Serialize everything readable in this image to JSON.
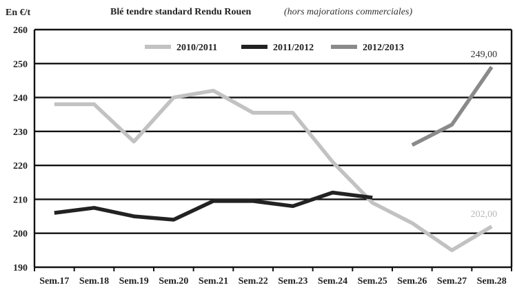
{
  "chart_data": {
    "type": "line",
    "title": "Blé tendre standard Rendu Rouen",
    "subtitle": "(hors majorations commerciales)",
    "ylabel": "En €/t",
    "xlabel": "",
    "ylim": [
      190,
      260
    ],
    "yticks": [
      "190",
      "200",
      "210",
      "220",
      "230",
      "240",
      "250",
      "260"
    ],
    "grid": true,
    "legend_position": "top",
    "categories": [
      "Sem.17",
      "Sem.18",
      "Sem.19",
      "Sem.20",
      "Sem.21",
      "Sem.22",
      "Sem.23",
      "Sem.24",
      "Sem.25",
      "Sem.26",
      "Sem.27",
      "Sem.28"
    ],
    "series": [
      {
        "name": "2010/2011",
        "color": "#c2c2c2",
        "values": [
          238,
          238,
          227,
          240,
          242,
          235.5,
          235.5,
          221,
          209,
          203,
          195,
          202
        ],
        "end_label": "202,00"
      },
      {
        "name": "2011/2012",
        "color": "#222222",
        "values": [
          206,
          207.5,
          205,
          204,
          209.5,
          209.5,
          208,
          212,
          210.5,
          null,
          null,
          null
        ],
        "end_label": ""
      },
      {
        "name": "2012/2013",
        "color": "#8a8a8a",
        "values": [
          null,
          null,
          null,
          null,
          null,
          null,
          null,
          null,
          null,
          226,
          232,
          249
        ],
        "end_label": "249,00"
      }
    ]
  }
}
